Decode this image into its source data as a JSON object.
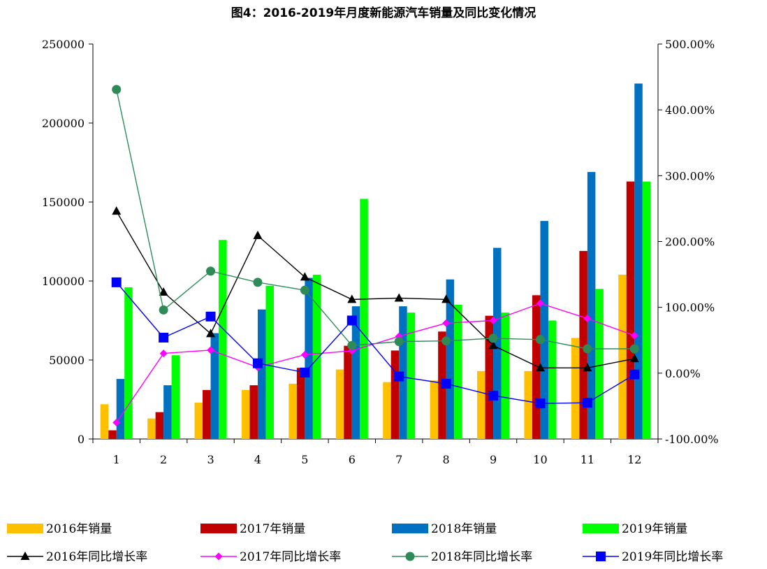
{
  "chart_data": {
    "type": "bar",
    "title": "图4：2016-2019年月度新能源汽车销量及同比变化情况",
    "categories": [
      "1",
      "2",
      "3",
      "4",
      "5",
      "6",
      "7",
      "8",
      "9",
      "10",
      "11",
      "12"
    ],
    "y_left": {
      "min": 0,
      "max": 250000,
      "ticks": [
        "0",
        "50000",
        "100000",
        "150000",
        "200000",
        "250000"
      ]
    },
    "y_right": {
      "min": -100,
      "max": 500,
      "ticks": [
        "-100.00%",
        "0.00%",
        "100.00%",
        "200.00%",
        "300.00%",
        "400.00%",
        "500.00%"
      ]
    },
    "bar_series": [
      {
        "name": "2016年销量",
        "color": "#FFC000",
        "values": [
          22000,
          13000,
          23000,
          31000,
          35000,
          44000,
          36000,
          37000,
          43000,
          43000,
          64000,
          104000
        ]
      },
      {
        "name": "2017年销量",
        "color": "#C00000",
        "values": [
          5500,
          17000,
          31000,
          34000,
          45000,
          59000,
          56000,
          68000,
          78000,
          91000,
          119000,
          163000
        ]
      },
      {
        "name": "2018年销量",
        "color": "#0070C0",
        "values": [
          38000,
          34000,
          67000,
          82000,
          102000,
          84000,
          84000,
          101000,
          121000,
          138000,
          169000,
          225000
        ]
      },
      {
        "name": "2019年销量",
        "color": "#00FF00",
        "values": [
          96000,
          53000,
          126000,
          97000,
          104000,
          152000,
          80000,
          85000,
          80000,
          75000,
          95000,
          163000
        ]
      }
    ],
    "line_series": [
      {
        "name": "2016年同比增长率",
        "color": "#000000",
        "marker": "triangle",
        "values": [
          246,
          123,
          60,
          209,
          146,
          112,
          114,
          112,
          42,
          8,
          8,
          22
        ]
      },
      {
        "name": "2017年同比增长率",
        "color": "#FF00FF",
        "marker": "diamond",
        "values": [
          -75,
          30,
          35,
          9,
          28,
          34,
          56,
          76,
          80,
          106,
          83,
          57
        ]
      },
      {
        "name": "2018年同比增长率",
        "color": "#2E8B57",
        "marker": "circle",
        "values": [
          431,
          96,
          155,
          138,
          126,
          42,
          48,
          49,
          53,
          51,
          37,
          37
        ]
      },
      {
        "name": "2019年同比增长率",
        "color": "#0000FF",
        "marker": "square",
        "values": [
          138,
          54,
          86,
          15,
          1,
          80,
          -5,
          -16,
          -34,
          -46,
          -45,
          -2
        ]
      }
    ]
  }
}
